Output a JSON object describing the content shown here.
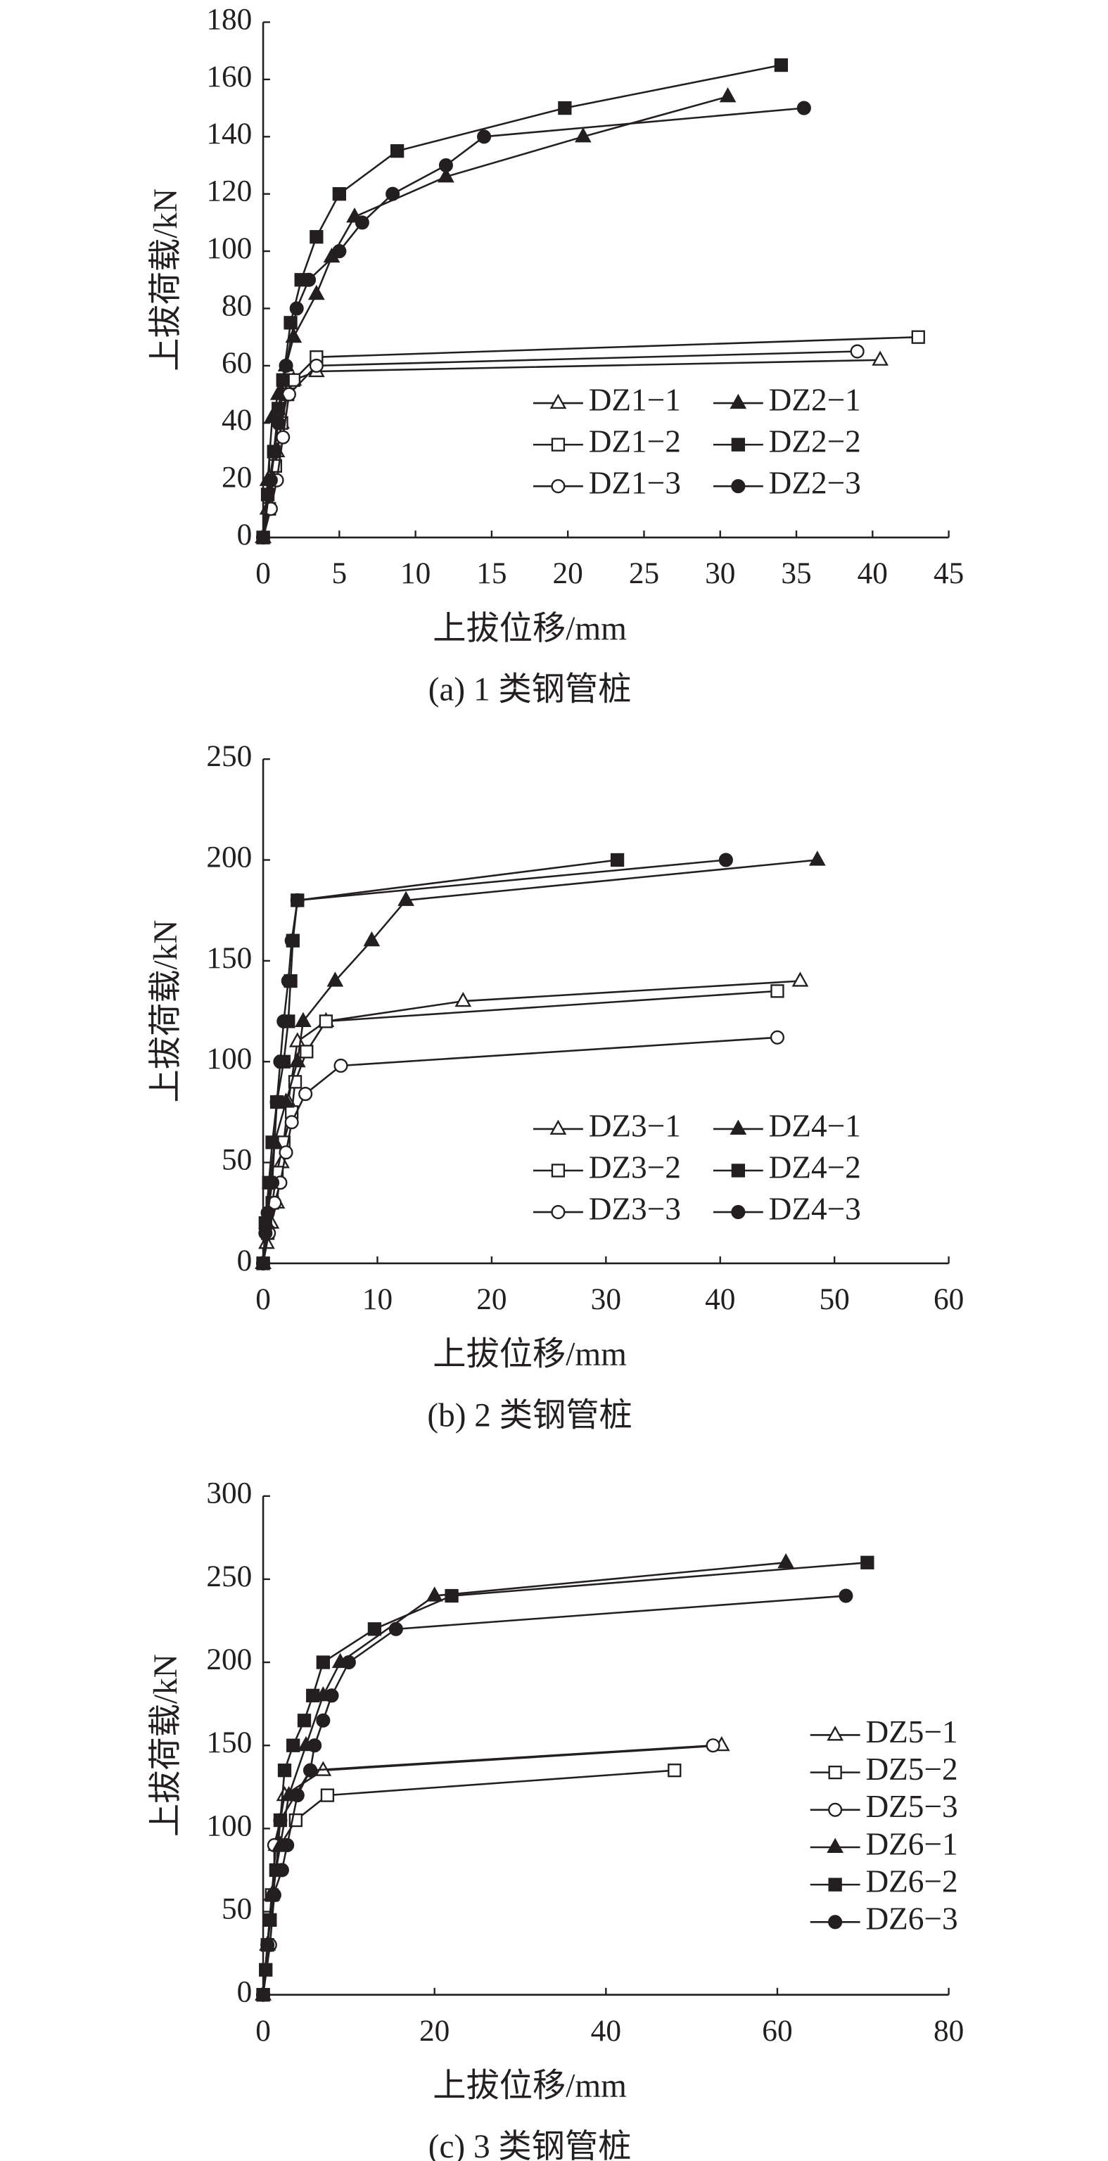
{
  "chart_data": [
    {
      "type": "line",
      "caption": "(a) 1 类钢管桩",
      "xlabel": "上拔位移/mm",
      "ylabel": "上拔荷载/kN",
      "xlim": [
        0,
        45
      ],
      "xticks": [
        0,
        5,
        10,
        15,
        20,
        25,
        30,
        35,
        40,
        45
      ],
      "ylim": [
        0,
        180
      ],
      "yticks": [
        0,
        20,
        40,
        60,
        80,
        100,
        120,
        140,
        160,
        180
      ],
      "legend": "lower right",
      "legend_columns": 2,
      "series": [
        {
          "name": "DZ1−1",
          "color": "#231f20",
          "marker": "triangle-open",
          "x": [
            0,
            0.3,
            0.6,
            0.9,
            1.2,
            1.5,
            2,
            3.5,
            40.5
          ],
          "values": [
            0,
            10,
            20,
            30,
            40,
            50,
            55,
            58,
            62
          ]
        },
        {
          "name": "DZ1−2",
          "color": "#231f20",
          "marker": "square-open",
          "x": [
            0,
            0.4,
            0.8,
            1.2,
            1.6,
            2,
            3.5,
            43
          ],
          "values": [
            0,
            10,
            25,
            40,
            50,
            55,
            63,
            70
          ]
        },
        {
          "name": "DZ1−3",
          "color": "#231f20",
          "marker": "circle-open",
          "x": [
            0,
            0.5,
            0.9,
            1.3,
            1.7,
            3.5,
            39
          ],
          "values": [
            0,
            10,
            20,
            35,
            50,
            60,
            65
          ]
        },
        {
          "name": "DZ2−1",
          "color": "#231f20",
          "marker": "triangle",
          "x": [
            0,
            0.3,
            0.6,
            1,
            1.5,
            2,
            3.5,
            4.5,
            6,
            12,
            21,
            30.5
          ],
          "values": [
            0,
            20,
            42,
            50,
            60,
            70,
            85,
            98,
            112,
            126,
            140,
            154
          ]
        },
        {
          "name": "DZ2−2",
          "color": "#231f20",
          "marker": "square",
          "x": [
            0,
            0.3,
            0.7,
            1,
            1.3,
            1.8,
            2.5,
            3.5,
            5,
            8.8,
            19.8,
            34
          ],
          "values": [
            0,
            15,
            30,
            45,
            55,
            75,
            90,
            105,
            120,
            135,
            150,
            165
          ]
        },
        {
          "name": "DZ2−3",
          "color": "#231f20",
          "marker": "circle",
          "x": [
            0,
            0.5,
            1,
            1.5,
            2.2,
            3,
            5,
            6.5,
            8.5,
            12,
            14.5,
            35.5
          ],
          "values": [
            0,
            20,
            40,
            60,
            80,
            90,
            100,
            110,
            120,
            130,
            140,
            150
          ]
        }
      ]
    },
    {
      "type": "line",
      "caption": "(b) 2 类钢管桩",
      "xlabel": "上拔位移/mm",
      "ylabel": "上拔荷载/kN",
      "xlim": [
        0,
        60
      ],
      "xticks": [
        0,
        10,
        20,
        30,
        40,
        50,
        60
      ],
      "ylim": [
        0,
        250
      ],
      "yticks": [
        0,
        50,
        100,
        150,
        200,
        250
      ],
      "legend": "lower right",
      "legend_columns": 2,
      "series": [
        {
          "name": "DZ3−1",
          "color": "#231f20",
          "marker": "triangle-open",
          "x": [
            0,
            0.3,
            0.7,
            1.2,
            1.6,
            2.2,
            3,
            5.5,
            17.5,
            47
          ],
          "values": [
            0,
            10,
            20,
            30,
            50,
            80,
            110,
            120,
            130,
            140
          ]
        },
        {
          "name": "DZ3−2",
          "color": "#231f20",
          "marker": "square-open",
          "x": [
            0,
            0.4,
            0.8,
            1.2,
            1.8,
            2.5,
            2.8,
            3.8,
            5.5,
            45
          ],
          "values": [
            0,
            15,
            30,
            45,
            60,
            75,
            90,
            105,
            120,
            135
          ]
        },
        {
          "name": "DZ3−3",
          "color": "#231f20",
          "marker": "circle-open",
          "x": [
            0,
            0.5,
            1,
            1.5,
            2,
            2.5,
            3.7,
            6.8,
            45
          ],
          "values": [
            0,
            15,
            30,
            40,
            55,
            70,
            84,
            98,
            112
          ]
        },
        {
          "name": "DZ4−1",
          "color": "#231f20",
          "marker": "triangle",
          "x": [
            0,
            0.3,
            0.6,
            1,
            2,
            3,
            3.5,
            6.3,
            9.5,
            12.5,
            48.5
          ],
          "values": [
            0,
            20,
            40,
            60,
            80,
            100,
            120,
            140,
            160,
            180,
            200
          ]
        },
        {
          "name": "DZ4−2",
          "color": "#231f20",
          "marker": "square",
          "x": [
            0,
            0.2,
            0.5,
            0.8,
            1.2,
            1.8,
            2.2,
            2.4,
            2.6,
            3,
            31
          ],
          "values": [
            0,
            20,
            40,
            60,
            80,
            100,
            120,
            140,
            160,
            180,
            200
          ]
        },
        {
          "name": "DZ4−3",
          "color": "#231f20",
          "marker": "circle",
          "x": [
            0,
            0.2,
            0.4,
            0.8,
            1.2,
            1.5,
            1.8,
            2.2,
            2.5,
            3,
            40.5
          ],
          "values": [
            0,
            15,
            25,
            40,
            80,
            100,
            120,
            140,
            160,
            180,
            200
          ]
        }
      ]
    },
    {
      "type": "line",
      "caption": "(c) 3 类钢管桩",
      "xlabel": "上拔位移/mm",
      "ylabel": "上拔荷载/kN",
      "xlim": [
        0,
        80
      ],
      "xticks": [
        0,
        20,
        40,
        60,
        80
      ],
      "ylim": [
        0,
        300
      ],
      "yticks": [
        0,
        50,
        100,
        150,
        200,
        250,
        300
      ],
      "legend": "center right",
      "legend_columns": 1,
      "series": [
        {
          "name": "DZ5−1",
          "color": "#231f20",
          "marker": "triangle-open",
          "x": [
            0,
            0.5,
            1,
            1.5,
            2.5,
            7,
            53.5
          ],
          "values": [
            0,
            30,
            60,
            90,
            120,
            135,
            150
          ]
        },
        {
          "name": "DZ5−2",
          "color": "#231f20",
          "marker": "square-open",
          "x": [
            0,
            0.5,
            1,
            2,
            3.8,
            7.5,
            48
          ],
          "values": [
            0,
            30,
            60,
            90,
            105,
            120,
            135
          ]
        },
        {
          "name": "DZ5−3",
          "color": "#231f20",
          "marker": "circle-open",
          "x": [
            0,
            0.8,
            1.3,
            1.3,
            2,
            5.5,
            52.5
          ],
          "values": [
            0,
            30,
            60,
            90,
            105,
            135,
            150
          ]
        },
        {
          "name": "DZ6−1",
          "color": "#231f20",
          "marker": "triangle",
          "x": [
            0,
            0.5,
            1,
            2,
            3,
            5,
            7,
            9,
            20,
            61
          ],
          "values": [
            0,
            30,
            60,
            90,
            120,
            150,
            180,
            200,
            240,
            260
          ]
        },
        {
          "name": "DZ6−2",
          "color": "#231f20",
          "marker": "square",
          "x": [
            0,
            0.3,
            0.8,
            1.5,
            2,
            2.5,
            3.5,
            4.8,
            5.8,
            7,
            13,
            22,
            70.5
          ],
          "values": [
            0,
            15,
            45,
            75,
            105,
            135,
            150,
            165,
            180,
            200,
            220,
            240,
            260
          ]
        },
        {
          "name": "DZ6−3",
          "color": "#231f20",
          "marker": "circle",
          "x": [
            0,
            0.5,
            1.2,
            2.2,
            2.8,
            4,
            5.5,
            6,
            7,
            8,
            10,
            15.5,
            68
          ],
          "values": [
            0,
            30,
            60,
            75,
            90,
            120,
            135,
            150,
            165,
            180,
            200,
            220,
            240
          ]
        }
      ]
    }
  ]
}
